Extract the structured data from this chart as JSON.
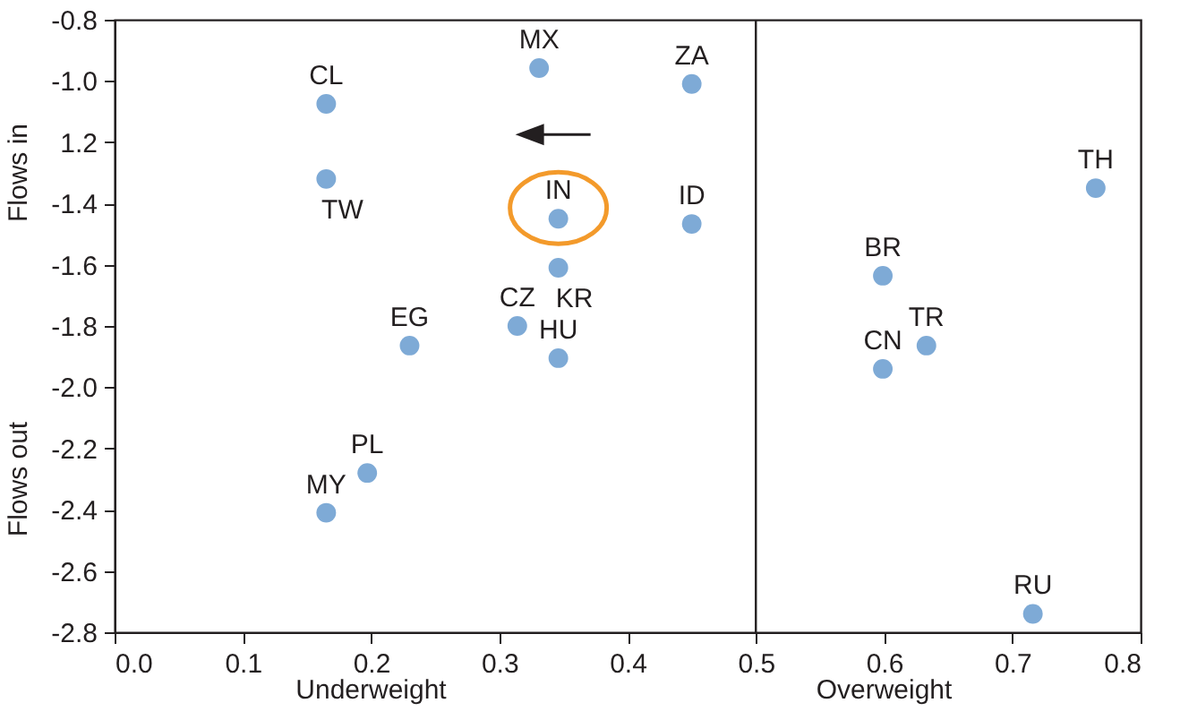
{
  "chart_data": {
    "type": "scatter",
    "series": [
      {
        "color": "#7eaad6",
        "x": [
          0.165,
          0.165,
          0.331,
          0.45,
          0.346,
          0.45,
          0.346,
          0.314,
          0.23,
          0.346,
          0.197,
          0.165,
          0.765,
          0.599,
          0.633,
          0.599,
          0.716
        ],
        "values": [
          -1.075,
          -1.32,
          -0.958,
          -1.01,
          -1.45,
          -1.467,
          -1.61,
          -1.8,
          -1.864,
          -1.905,
          -2.28,
          -2.41,
          -1.35,
          -1.636,
          -1.864,
          -1.94,
          -2.74
        ]
      }
    ],
    "annotations": [
      {
        "text": "CL",
        "x": 0.165,
        "y": -1.075
      },
      {
        "text": "TW",
        "x": 0.165,
        "y": -1.32
      },
      {
        "text": "MX",
        "x": 0.331,
        "y": -0.958
      },
      {
        "text": "ZA",
        "x": 0.45,
        "y": -1.01
      },
      {
        "text": "IN",
        "x": 0.346,
        "y": -1.45
      },
      {
        "text": "ID",
        "x": 0.45,
        "y": -1.467
      },
      {
        "text": "KR",
        "x": 0.346,
        "y": -1.61
      },
      {
        "text": "CZ",
        "x": 0.314,
        "y": -1.8
      },
      {
        "text": "EG",
        "x": 0.23,
        "y": -1.864
      },
      {
        "text": "HU",
        "x": 0.346,
        "y": -1.905
      },
      {
        "text": "PL",
        "x": 0.197,
        "y": -2.28
      },
      {
        "text": "MY",
        "x": 0.165,
        "y": -2.41
      },
      {
        "text": "TH",
        "x": 0.765,
        "y": -1.35
      },
      {
        "text": "BR",
        "x": 0.599,
        "y": -1.636
      },
      {
        "text": "TR",
        "x": 0.633,
        "y": -1.864
      },
      {
        "text": "CN",
        "x": 0.599,
        "y": -1.94
      },
      {
        "text": "RU",
        "x": 0.716,
        "y": -2.74
      },
      "Underweight",
      "Overweight",
      "Flows in",
      "Flows out"
    ],
    "ref_lines": [
      {
        "axis": "x",
        "value": 0.5,
        "color": "#231f20"
      }
    ],
    "xlim": [
      0.0,
      0.8
    ],
    "xticks": [
      {
        "value": 0,
        "label": "0.0"
      },
      0.1,
      0.2,
      0.3,
      0.4,
      0.5,
      0.6,
      0.7,
      0.8
    ],
    "ylim": [
      -2.8,
      -0.8
    ],
    "yticks": [
      -0.8,
      {
        "value": -1.0,
        "label": "-1.0"
      },
      {
        "value": -1.2,
        "label": "1.2"
      },
      -1.4,
      -1.6,
      -1.8,
      {
        "value": -2.0,
        "label": "-2.0"
      },
      -2.2,
      -2.4,
      -2.6,
      -2.8
    ],
    "marker": "circle",
    "grid": false
  }
}
